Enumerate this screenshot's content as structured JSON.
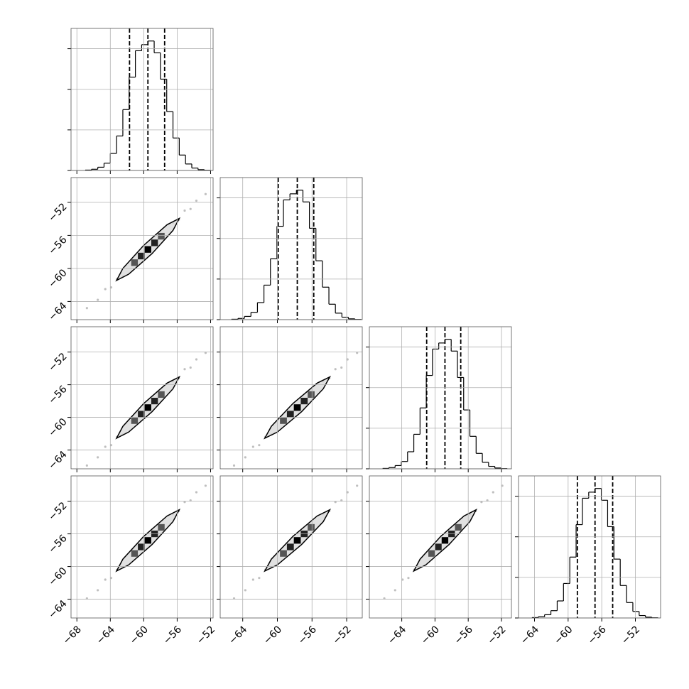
{
  "chart_data": [
    {
      "type": "histogram",
      "color": "#000000",
      "bins": [
        -67,
        -66.25,
        -65.5,
        -64.75,
        -64,
        -63.25,
        -62.5,
        -61.75,
        -61,
        -60.25,
        -59.5,
        -58.75,
        -58,
        -57.25,
        -56.5,
        -55.75,
        -55,
        -54.25,
        -53.5,
        -52.75,
        -52
      ],
      "counts": [
        10,
        30,
        80,
        180,
        420,
        850,
        1500,
        2300,
        2950,
        3100,
        3190,
        2900,
        2250,
        1450,
        800,
        380,
        160,
        60,
        20,
        5
      ],
      "quantiles": [
        -61.7,
        -59.5,
        -57.5
      ],
      "xlim": [
        -68.7,
        -51.7
      ],
      "ylim": [
        0,
        3500
      ],
      "xticks": [
        -68,
        -64,
        -60,
        -56,
        -52
      ],
      "yticks": [
        0,
        1000,
        2000,
        3000
      ],
      "grid": true
    },
    {
      "type": "scatter",
      "color": "#808080",
      "x": [
        -66.8,
        -65.5,
        -64.6,
        -63.9,
        -63.2,
        -62.5,
        -56.5,
        -55.8,
        -55.1,
        -54.4,
        -53.7,
        -52.6
      ],
      "y": [
        -64.8,
        -63.8,
        -62.5,
        -62.3,
        -61.3,
        -61.0,
        -54.5,
        -54.1,
        -53.0,
        -52.8,
        -51.8,
        -51.0
      ],
      "contour_x": [
        -55.75,
        -57.2,
        -60,
        -62.5,
        -63.25,
        -61.8,
        -59,
        -56.5
      ],
      "contour_y": [
        -53.95,
        -54.7,
        -57.2,
        -60,
        -61.45,
        -60.7,
        -58.2,
        -55.4
      ],
      "density_x": [
        -61.1,
        -60.3,
        -59.5,
        -58.7,
        -57.9
      ],
      "density_y": [
        -59.3,
        -58.5,
        -57.7,
        -56.9,
        -56.1
      ],
      "xlim": [
        -68.7,
        -51.7
      ],
      "ylim": [
        -66.2,
        -49.0
      ],
      "xticks": [
        -68,
        -64,
        -60,
        -56,
        -52
      ],
      "yticks": [
        {
          "value": -64,
          "label": "−64"
        },
        {
          "value": -60,
          "label": "−60"
        },
        {
          "value": -56,
          "label": "−56"
        },
        {
          "value": -52,
          "label": "−52"
        }
      ],
      "grid": true
    },
    {
      "type": "histogram",
      "color": "#000000",
      "bins": [
        -65.3,
        -64.55,
        -63.8,
        -63.05,
        -62.3,
        -61.55,
        -60.8,
        -60.05,
        -59.3,
        -58.55,
        -57.8,
        -57.05,
        -56.3,
        -55.55,
        -54.8,
        -54.05,
        -53.3,
        -52.55,
        -51.8,
        -51.05,
        -50.3
      ],
      "counts": [
        10,
        30,
        80,
        180,
        420,
        850,
        1500,
        2300,
        2950,
        3100,
        3190,
        2900,
        2250,
        1450,
        800,
        380,
        160,
        60,
        20,
        5
      ],
      "quantiles": [
        -59.9,
        -57.7,
        -55.8
      ],
      "xlim": [
        -66.6,
        -50.2
      ],
      "ylim": [
        0,
        3500
      ],
      "xticks": [
        -64,
        -60,
        -56,
        -52
      ],
      "yticks": [
        0,
        1000,
        2000,
        3000
      ],
      "grid": true
    },
    {
      "type": "scatter",
      "color": "#808080",
      "x": [
        -66.8,
        -65.5,
        -64.6,
        -63.9,
        -63.2,
        -62.5,
        -56.5,
        -55.8,
        -55.1,
        -54.4,
        -53.7,
        -52.6
      ],
      "y": [
        -65.9,
        -64.9,
        -63.6,
        -63.4,
        -62.4,
        -62.1,
        -55.6,
        -55.2,
        -54.1,
        -53.9,
        -52.9,
        -52.1
      ],
      "contour_x": [
        -55.75,
        -57.2,
        -60,
        -62.5,
        -63.25,
        -61.8,
        -59,
        -56.5
      ],
      "contour_y": [
        -55.05,
        -55.8,
        -58.3,
        -61.1,
        -62.55,
        -61.8,
        -59.3,
        -56.5
      ],
      "density_x": [
        -61.1,
        -60.3,
        -59.5,
        -58.7,
        -57.9
      ],
      "density_y": [
        -60.4,
        -59.6,
        -58.8,
        -58,
        -57.2
      ],
      "xlim": [
        -68.7,
        -51.7
      ],
      "ylim": [
        -66.3,
        -48.9
      ],
      "xticks": [
        -68,
        -64,
        -60,
        -56,
        -52
      ],
      "yticks": [
        {
          "value": -64,
          "label": "−64"
        },
        {
          "value": -60,
          "label": "−60"
        },
        {
          "value": -56,
          "label": "−56"
        },
        {
          "value": -52,
          "label": "−52"
        }
      ],
      "grid": true
    },
    {
      "type": "scatter",
      "color": "#808080",
      "x": [
        -65.0,
        -63.7,
        -62.8,
        -62.1,
        -61.4,
        -60.7,
        -54.7,
        -54.0,
        -53.3,
        -52.6,
        -51.9,
        -50.8
      ],
      "y": [
        -65.9,
        -64.9,
        -63.6,
        -63.4,
        -62.4,
        -62.1,
        -55.6,
        -55.2,
        -54.1,
        -53.9,
        -52.9,
        -52.1
      ],
      "contour_x": [
        -53.95,
        -55.4,
        -58.2,
        -60.7,
        -61.45,
        -60,
        -57.2,
        -54.7
      ],
      "contour_y": [
        -55.05,
        -55.8,
        -58.3,
        -61.1,
        -62.55,
        -61.8,
        -59.3,
        -56.5
      ],
      "density_x": [
        -59.3,
        -58.5,
        -57.7,
        -56.9,
        -56.1
      ],
      "density_y": [
        -60.4,
        -59.6,
        -58.8,
        -58,
        -57.2
      ],
      "xlim": [
        -66.6,
        -50.2
      ],
      "ylim": [
        -66.3,
        -48.9
      ],
      "xticks": [
        -64,
        -60,
        -56,
        -52
      ],
      "yticks": [
        -64,
        -60,
        -56,
        -52
      ],
      "grid": true
    },
    {
      "type": "histogram",
      "color": "#000000",
      "bins": [
        -66.3,
        -65.55,
        -64.8,
        -64.05,
        -63.3,
        -62.55,
        -61.8,
        -61.05,
        -60.3,
        -59.55,
        -58.8,
        -58.05,
        -57.3,
        -56.55,
        -55.8,
        -55.05,
        -54.3,
        -53.55,
        -52.8,
        -52.05,
        -51.3
      ],
      "counts": [
        10,
        30,
        80,
        180,
        420,
        850,
        1500,
        2300,
        2950,
        3100,
        3190,
        2900,
        2250,
        1450,
        800,
        380,
        160,
        60,
        20,
        5
      ],
      "quantiles": [
        -61.0,
        -58.8,
        -56.9
      ],
      "xlim": [
        -67.9,
        -50.8
      ],
      "ylim": [
        0,
        3500
      ],
      "xticks": [
        -64,
        -60,
        -56,
        -52
      ],
      "yticks": [
        0,
        1000,
        2000,
        3000
      ],
      "grid": true
    },
    {
      "type": "scatter",
      "color": "#808080",
      "x": [
        -66.8,
        -65.5,
        -64.6,
        -63.9,
        -63.2,
        -62.5,
        -56.5,
        -55.8,
        -55.1,
        -54.4,
        -53.7,
        -52.6
      ],
      "y": [
        -63.9,
        -62.9,
        -61.6,
        -61.4,
        -60.4,
        -60.1,
        -53.6,
        -53.2,
        -52.1,
        -51.9,
        -50.9,
        -50.1
      ],
      "contour_x": [
        -55.75,
        -57.2,
        -60,
        -62.5,
        -63.25,
        -61.8,
        -59,
        -56.5
      ],
      "contour_y": [
        -53.05,
        -53.8,
        -56.3,
        -59.1,
        -60.55,
        -59.8,
        -57.3,
        -54.5
      ],
      "density_x": [
        -61.1,
        -60.3,
        -59.5,
        -58.7,
        -57.9
      ],
      "density_y": [
        -58.4,
        -57.6,
        -56.8,
        -56,
        -55.2
      ],
      "xlim": [
        -68.7,
        -51.7
      ],
      "ylim": [
        -66.3,
        -48.9
      ],
      "xticks": [
        {
          "value": -68,
          "label": "−68"
        },
        {
          "value": -64,
          "label": "−64"
        },
        {
          "value": -60,
          "label": "−60"
        },
        {
          "value": -56,
          "label": "−56"
        },
        {
          "value": -52,
          "label": "−52"
        }
      ],
      "yticks": [
        {
          "value": -64,
          "label": "−64"
        },
        {
          "value": -60,
          "label": "−60"
        },
        {
          "value": -56,
          "label": "−56"
        },
        {
          "value": -52,
          "label": "−52"
        }
      ],
      "grid": true
    },
    {
      "type": "scatter",
      "color": "#808080",
      "x": [
        -65.0,
        -63.7,
        -62.8,
        -62.1,
        -61.4,
        -60.7,
        -54.7,
        -54.0,
        -53.3,
        -52.6,
        -51.9,
        -50.8
      ],
      "y": [
        -63.9,
        -62.9,
        -61.6,
        -61.4,
        -60.4,
        -60.1,
        -53.6,
        -53.2,
        -52.1,
        -51.9,
        -50.9,
        -50.1
      ],
      "contour_x": [
        -53.95,
        -55.4,
        -58.2,
        -60.7,
        -61.45,
        -60,
        -57.2,
        -54.7
      ],
      "contour_y": [
        -53.05,
        -53.8,
        -56.3,
        -59.1,
        -60.55,
        -59.8,
        -57.3,
        -54.5
      ],
      "density_x": [
        -59.3,
        -58.5,
        -57.7,
        -56.9,
        -56.1
      ],
      "density_y": [
        -58.4,
        -57.6,
        -56.8,
        -56,
        -55.2
      ],
      "xlim": [
        -66.6,
        -50.2
      ],
      "ylim": [
        -66.3,
        -48.9
      ],
      "xticks": [
        {
          "value": -64,
          "label": "−64"
        },
        {
          "value": -60,
          "label": "−60"
        },
        {
          "value": -56,
          "label": "−56"
        },
        {
          "value": -52,
          "label": "−52"
        }
      ],
      "yticks": [
        -64,
        -60,
        -56,
        -52
      ],
      "grid": true
    },
    {
      "type": "scatter",
      "color": "#808080",
      "x": [
        -66.1,
        -64.8,
        -63.9,
        -63.2,
        -62.5,
        -61.8,
        -55.8,
        -55.1,
        -54.4,
        -53.7,
        -53.0,
        -51.9
      ],
      "y": [
        -63.9,
        -62.9,
        -61.6,
        -61.4,
        -60.4,
        -60.1,
        -53.6,
        -53.2,
        -52.1,
        -51.9,
        -50.9,
        -50.1
      ],
      "contour_x": [
        -55.05,
        -56.5,
        -59.3,
        -61.8,
        -62.55,
        -61.1,
        -58.3,
        -55.8
      ],
      "contour_y": [
        -53.05,
        -53.8,
        -56.3,
        -59.1,
        -60.55,
        -59.8,
        -57.3,
        -54.5
      ],
      "density_x": [
        -60.4,
        -59.6,
        -58.8,
        -58,
        -57.2
      ],
      "density_y": [
        -58.4,
        -57.6,
        -56.8,
        -56,
        -55.2
      ],
      "xlim": [
        -67.9,
        -50.8
      ],
      "ylim": [
        -66.3,
        -48.9
      ],
      "xticks": [
        {
          "value": -64,
          "label": "−64"
        },
        {
          "value": -60,
          "label": "−60"
        },
        {
          "value": -56,
          "label": "−56"
        },
        {
          "value": -52,
          "label": "−52"
        }
      ],
      "yticks": [
        -64,
        -60,
        -56,
        -52
      ],
      "grid": true
    },
    {
      "type": "histogram",
      "color": "#000000",
      "bins": [
        -64.3,
        -63.55,
        -62.8,
        -62.05,
        -61.3,
        -60.55,
        -59.8,
        -59.05,
        -58.3,
        -57.55,
        -56.8,
        -56.05,
        -55.3,
        -54.55,
        -53.8,
        -53.05,
        -52.3,
        -51.55,
        -50.8,
        -50.05,
        -49.3
      ],
      "counts": [
        10,
        30,
        80,
        180,
        420,
        850,
        1500,
        2300,
        2950,
        3100,
        3190,
        2900,
        2250,
        1450,
        800,
        380,
        160,
        60,
        20,
        5
      ],
      "quantiles": [
        -58.9,
        -56.8,
        -54.7
      ],
      "xlim": [
        -65.9,
        -49.0
      ],
      "ylim": [
        0,
        3500
      ],
      "xticks": [
        {
          "value": -64,
          "label": "−64"
        },
        {
          "value": -60,
          "label": "−60"
        },
        {
          "value": -56,
          "label": "−56"
        },
        {
          "value": -52,
          "label": "−52"
        }
      ],
      "yticks": [
        0,
        1000,
        2000,
        3000
      ],
      "grid": true
    }
  ]
}
